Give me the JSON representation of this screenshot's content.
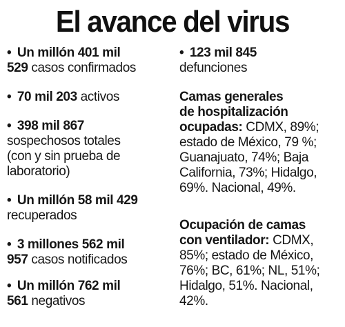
{
  "title": "El avance del virus",
  "left_items": [
    {
      "bold": "Un millón 401 mil",
      "bold2": "529",
      "rest": " casos confirmados"
    },
    {
      "bold": "70 mil 203",
      "rest": " activos"
    },
    {
      "bold": "398 mil 867",
      "rest_lines": [
        "sospechosos totales",
        "(con y sin prueba de",
        "laboratorio)"
      ]
    },
    {
      "bold": "Un millón 58 mil 429",
      "rest_lines": [
        "recuperados"
      ]
    },
    {
      "bold": "3 millones 562 mil",
      "bold2": "957",
      "rest": " casos notificados"
    },
    {
      "bold": "Un millón 762 mil",
      "bold2": "561",
      "rest": " negativos"
    }
  ],
  "right_items": {
    "deaths_bold": "123 mil 845",
    "deaths_rest": "defunciones",
    "beds_heading_1": "Camas generales",
    "beds_heading_2": "de hospitalización",
    "beds_heading_3": "ocupadas:",
    "beds_text_1": " CDMX, 89%;",
    "beds_text_2": "estado de México, 79 %;",
    "beds_text_3": "Guanajuato, 74%; Baja",
    "beds_text_4": "California, 73%; Hidalgo,",
    "beds_text_5": "69%. Nacional, 49%.",
    "vent_heading_1": "Ocupación de camas",
    "vent_heading_2": "con ventilador:",
    "vent_text_1": " CDMX,",
    "vent_text_2": "85%; estado de México,",
    "vent_text_3": "76%; BC, 61%; NL, 51%;",
    "vent_text_4": "Hidalgo, 51%. Nacional,",
    "vent_text_5": "42%."
  },
  "bullet": "•"
}
